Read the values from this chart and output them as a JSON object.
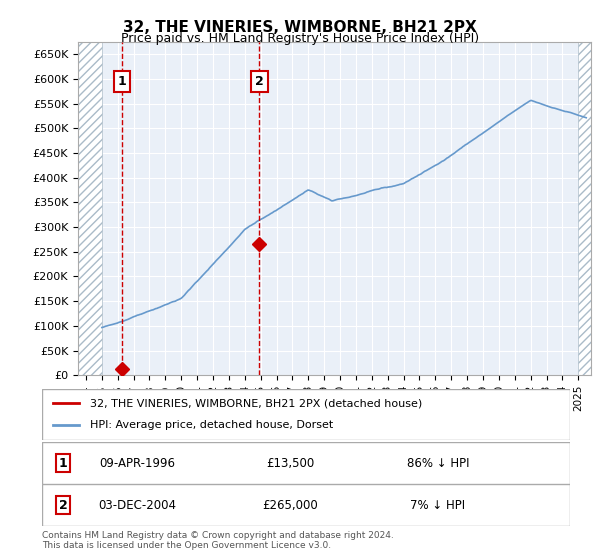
{
  "title": "32, THE VINERIES, WIMBORNE, BH21 2PX",
  "subtitle": "Price paid vs. HM Land Registry's House Price Index (HPI)",
  "ylabel_ticks": [
    "£0",
    "£50K",
    "£100K",
    "£150K",
    "£200K",
    "£250K",
    "£300K",
    "£350K",
    "£400K",
    "£450K",
    "£500K",
    "£550K",
    "£600K",
    "£650K"
  ],
  "ytick_values": [
    0,
    50000,
    100000,
    150000,
    200000,
    250000,
    300000,
    350000,
    400000,
    450000,
    500000,
    550000,
    600000,
    650000
  ],
  "ylim": [
    0,
    675000
  ],
  "sale1_date": 1996.27,
  "sale1_price": 13500,
  "sale2_date": 2004.92,
  "sale2_price": 265000,
  "sale1_label": "1",
  "sale2_label": "2",
  "legend_line1": "32, THE VINERIES, WIMBORNE, BH21 2PX (detached house)",
  "legend_line2": "HPI: Average price, detached house, Dorset",
  "table_row1": [
    "1",
    "09-APR-1996",
    "£13,500",
    "86% ↓ HPI"
  ],
  "table_row2": [
    "2",
    "03-DEC-2004",
    "£265,000",
    "7% ↓ HPI"
  ],
  "footnote": "Contains HM Land Registry data © Crown copyright and database right 2024.\nThis data is licensed under the Open Government Licence v3.0.",
  "hpi_color": "#6699cc",
  "sale_color": "#cc0000",
  "hatch_color": "#ccddee",
  "bg_color": "#eaf0f8",
  "grid_color": "#ffffff"
}
